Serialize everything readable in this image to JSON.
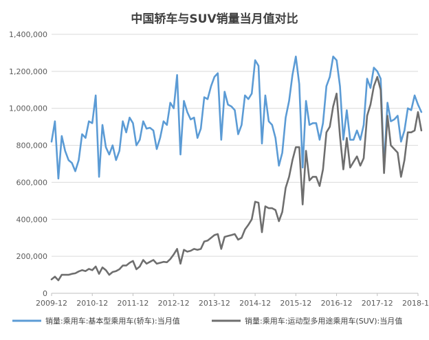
{
  "chart_data": {
    "type": "line",
    "title": "中国轿车与SUV销量当月值对比",
    "xlabel": "",
    "ylabel": "",
    "ylim": [
      0,
      1400000
    ],
    "yticks": [
      "0",
      "200,000",
      "400,000",
      "600,000",
      "800,000",
      "1,000,000",
      "1,200,000",
      "1,400,000"
    ],
    "xticks": [
      "2009-12",
      "2010-12",
      "2011-12",
      "2012-12",
      "2013-12",
      "2014-12",
      "2015-12",
      "2016-12",
      "2017-12",
      "2018-12"
    ],
    "x_start": "2009-12",
    "x_end": "2018-12",
    "grid": "horizontal",
    "legend_position": "bottom",
    "series": [
      {
        "name": "销量:乘用车:基本型乘用车(轿车):当月值",
        "color": "#5b9bd5",
        "start": "2009-12",
        "values": [
          820000,
          930000,
          620000,
          850000,
          770000,
          720000,
          705000,
          660000,
          720000,
          860000,
          840000,
          930000,
          920000,
          1070000,
          630000,
          910000,
          790000,
          750000,
          800000,
          720000,
          770000,
          930000,
          870000,
          950000,
          920000,
          800000,
          830000,
          930000,
          890000,
          895000,
          880000,
          780000,
          840000,
          930000,
          910000,
          1030000,
          1000000,
          1180000,
          750000,
          1040000,
          980000,
          940000,
          950000,
          840000,
          890000,
          1060000,
          1050000,
          1120000,
          1170000,
          1190000,
          830000,
          1090000,
          1020000,
          1010000,
          990000,
          860000,
          910000,
          1070000,
          1050000,
          1080000,
          1260000,
          1230000,
          810000,
          1070000,
          930000,
          910000,
          840000,
          690000,
          760000,
          950000,
          1040000,
          1180000,
          1280000,
          1130000,
          680000,
          1040000,
          910000,
          920000,
          920000,
          830000,
          920000,
          1120000,
          1170000,
          1280000,
          1260000,
          1120000,
          830000,
          990000,
          830000,
          830000,
          880000,
          830000,
          910000,
          1160000,
          1110000,
          1220000,
          1200000,
          1160000,
          680000,
          1030000,
          930000,
          940000,
          960000,
          820000,
          880000,
          1000000,
          990000,
          1070000,
          1020000,
          980000
        ]
      },
      {
        "name": "销量:乘用车:运动型多用途乘用车(SUV):当月值",
        "color": "#6e6e6e",
        "start": "2009-12",
        "values": [
          75000,
          90000,
          70000,
          100000,
          100000,
          100000,
          105000,
          108000,
          118000,
          125000,
          120000,
          132000,
          125000,
          145000,
          105000,
          140000,
          125000,
          100000,
          115000,
          120000,
          130000,
          150000,
          150000,
          165000,
          175000,
          130000,
          145000,
          180000,
          160000,
          170000,
          180000,
          160000,
          165000,
          170000,
          168000,
          185000,
          210000,
          240000,
          160000,
          235000,
          225000,
          230000,
          240000,
          235000,
          240000,
          280000,
          285000,
          300000,
          315000,
          320000,
          240000,
          305000,
          310000,
          315000,
          320000,
          290000,
          300000,
          345000,
          370000,
          400000,
          495000,
          490000,
          330000,
          470000,
          460000,
          460000,
          450000,
          390000,
          440000,
          570000,
          630000,
          720000,
          790000,
          790000,
          480000,
          770000,
          610000,
          630000,
          630000,
          580000,
          670000,
          870000,
          900000,
          1010000,
          1080000,
          850000,
          670000,
          840000,
          680000,
          710000,
          740000,
          690000,
          730000,
          960000,
          1020000,
          1120000,
          1170000,
          1100000,
          650000,
          960000,
          800000,
          780000,
          760000,
          630000,
          720000,
          870000,
          870000,
          880000,
          980000,
          880000
        ]
      }
    ]
  }
}
